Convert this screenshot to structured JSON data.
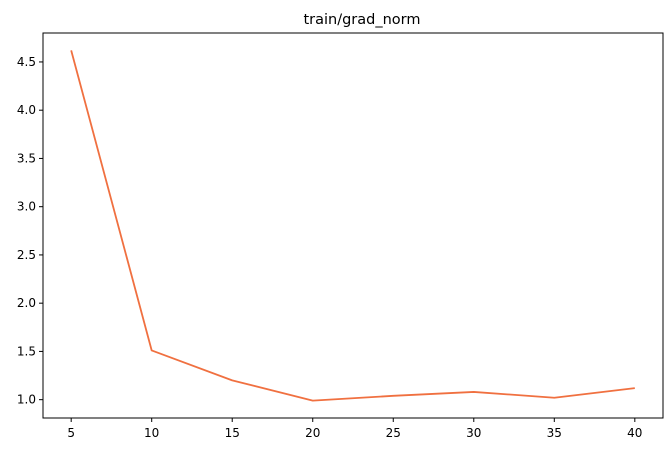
{
  "chart_data": {
    "type": "line",
    "title": "train/grad_norm",
    "xlabel": "",
    "ylabel": "",
    "xlim": [
      3.25,
      41.75
    ],
    "ylim": [
      0.81,
      4.8
    ],
    "x_ticks": [
      5,
      10,
      15,
      20,
      25,
      30,
      35,
      40
    ],
    "x_tick_labels": [
      "5",
      "10",
      "15",
      "20",
      "25",
      "30",
      "35",
      "40"
    ],
    "y_ticks": [
      1.0,
      1.5,
      2.0,
      2.5,
      3.0,
      3.5,
      4.0,
      4.5
    ],
    "y_tick_labels": [
      "1.0",
      "1.5",
      "2.0",
      "2.5",
      "3.0",
      "3.5",
      "4.0",
      "4.5"
    ],
    "grid": false,
    "legend": "none",
    "series": [
      {
        "color": "#f07040",
        "x": [
          5,
          10,
          15,
          20,
          25,
          30,
          35,
          40
        ],
        "y": [
          4.62,
          1.51,
          1.2,
          0.99,
          1.04,
          1.08,
          1.02,
          1.12
        ]
      }
    ]
  }
}
